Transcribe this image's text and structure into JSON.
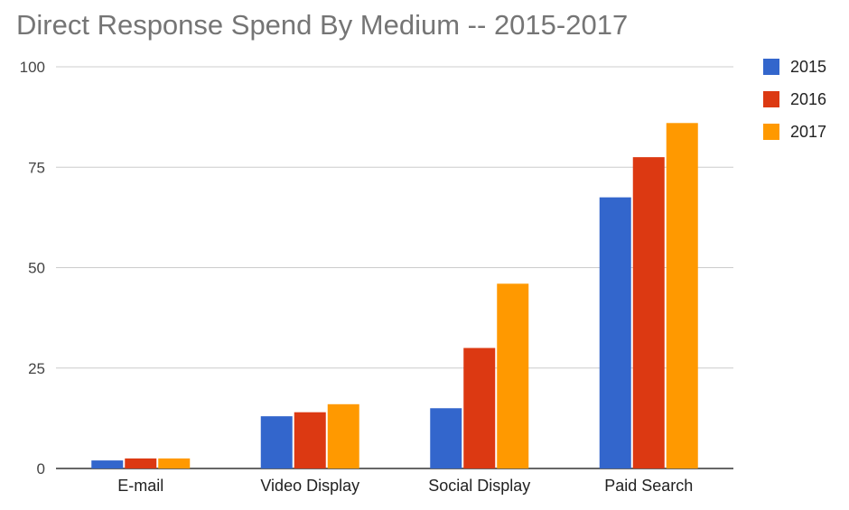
{
  "chart_data": {
    "type": "bar",
    "title": "Direct Response Spend By Medium -- 2015-2017",
    "xlabel": "",
    "ylabel": "",
    "ylim": [
      0,
      100
    ],
    "yticks": [
      0,
      25,
      50,
      75,
      100
    ],
    "categories": [
      "E-mail",
      "Video Display",
      "Social Display",
      "Paid Search"
    ],
    "series": [
      {
        "name": "2015",
        "color": "#3366cc",
        "values": [
          2,
          13,
          15,
          67.5
        ]
      },
      {
        "name": "2016",
        "color": "#dc3912",
        "values": [
          2.5,
          14,
          30,
          77.5
        ]
      },
      {
        "name": "2017",
        "color": "#ff9900",
        "values": [
          2.5,
          16,
          46,
          86
        ]
      }
    ],
    "grid": true,
    "legend": "right"
  }
}
